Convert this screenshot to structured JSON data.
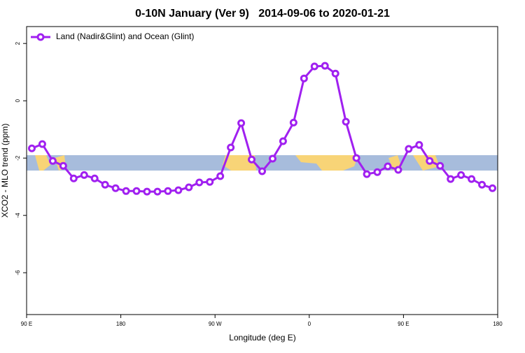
{
  "chart_data": {
    "type": "line",
    "title": "0-10N January (Ver 9)   2014-09-06 to 2020-01-21",
    "xlabel": "Longitude (deg E)",
    "ylabel": "XCO2 - MLO trend (ppm)",
    "x": [
      95,
      105,
      115,
      125,
      135,
      145,
      155,
      165,
      175,
      185,
      195,
      205,
      215,
      225,
      235,
      245,
      255,
      265,
      275,
      285,
      295,
      305,
      315,
      325,
      335,
      345,
      355,
      365,
      375,
      385,
      395,
      405,
      415,
      425,
      435,
      445,
      455,
      465,
      475,
      485,
      495,
      505,
      515,
      525,
      535
    ],
    "series": [
      {
        "name": "Land (Nadir&Glint) and Ocean (Glint)",
        "color": "#a020f0",
        "values": [
          -1.66,
          -1.51,
          -2.1,
          -2.27,
          -2.71,
          -2.59,
          -2.71,
          -2.93,
          -3.05,
          -3.15,
          -3.15,
          -3.17,
          -3.17,
          -3.15,
          -3.12,
          -3.02,
          -2.85,
          -2.83,
          -2.63,
          -1.63,
          -0.78,
          -2.05,
          -2.46,
          -2.02,
          -1.41,
          -0.76,
          0.78,
          1.2,
          1.22,
          0.95,
          -0.73,
          -2.0,
          -2.56,
          -2.49,
          -2.29,
          -2.41,
          -1.68,
          -1.54,
          -2.1,
          -2.27,
          -2.73,
          -2.59,
          -2.73,
          -2.93,
          -3.05
        ]
      }
    ],
    "xlim": [
      90,
      540
    ],
    "xticks": [
      {
        "value": 90,
        "label": "90 E"
      },
      180,
      {
        "value": 270,
        "label": "90 W"
      },
      {
        "value": 360,
        "label": "0"
      },
      {
        "value": 450,
        "label": "90 E"
      },
      180
    ],
    "ylim": [
      -7.46,
      2.59
    ],
    "yticks": [
      -6,
      -4,
      -2,
      0,
      2
    ],
    "legend": "top-left"
  }
}
